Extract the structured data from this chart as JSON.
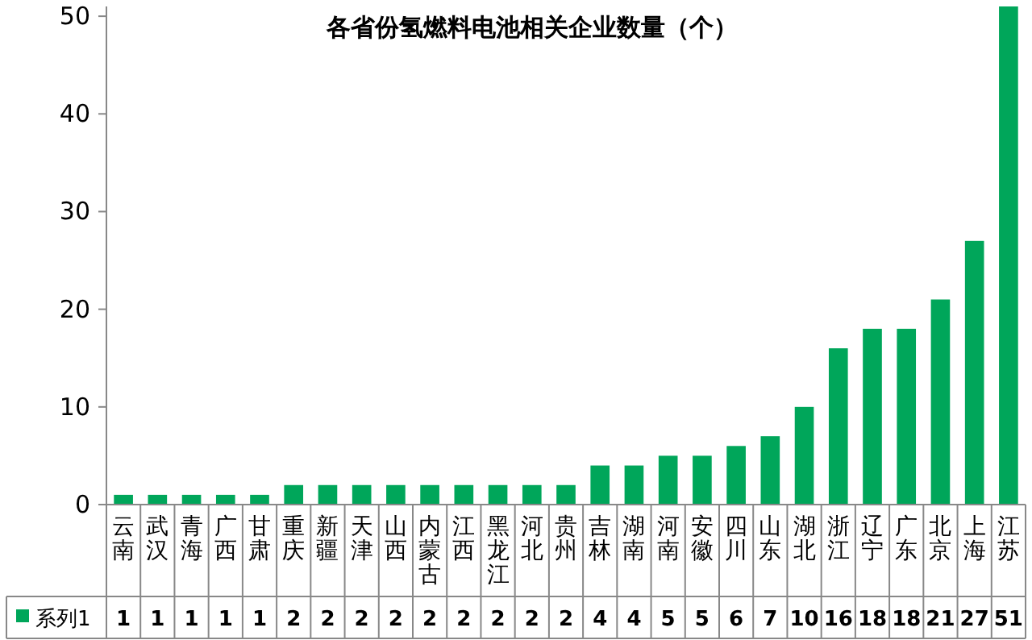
{
  "chart_data": {
    "type": "bar",
    "title": "各省份氢燃料电池相关企业数量（个）",
    "categories": [
      "云南",
      "武汉",
      "青海",
      "广西",
      "甘肃",
      "重庆",
      "新疆",
      "天津",
      "山西",
      "内蒙古",
      "江西",
      "黑龙江",
      "河北",
      "贵州",
      "吉林",
      "湖南",
      "河南",
      "安徽",
      "四川",
      "山东",
      "湖北",
      "浙江",
      "辽宁",
      "广东",
      "北京",
      "上海",
      "江苏"
    ],
    "series": [
      {
        "name": "系列1",
        "color": "#00a65a",
        "values": [
          1,
          1,
          1,
          1,
          1,
          2,
          2,
          2,
          2,
          2,
          2,
          2,
          2,
          2,
          4,
          4,
          5,
          5,
          6,
          7,
          10,
          16,
          18,
          18,
          21,
          27,
          51
        ]
      }
    ],
    "ylim": [
      0,
      51
    ],
    "yticks": [
      0,
      10,
      20,
      30,
      40,
      50
    ],
    "data_labels": true,
    "legend": "bottom"
  }
}
